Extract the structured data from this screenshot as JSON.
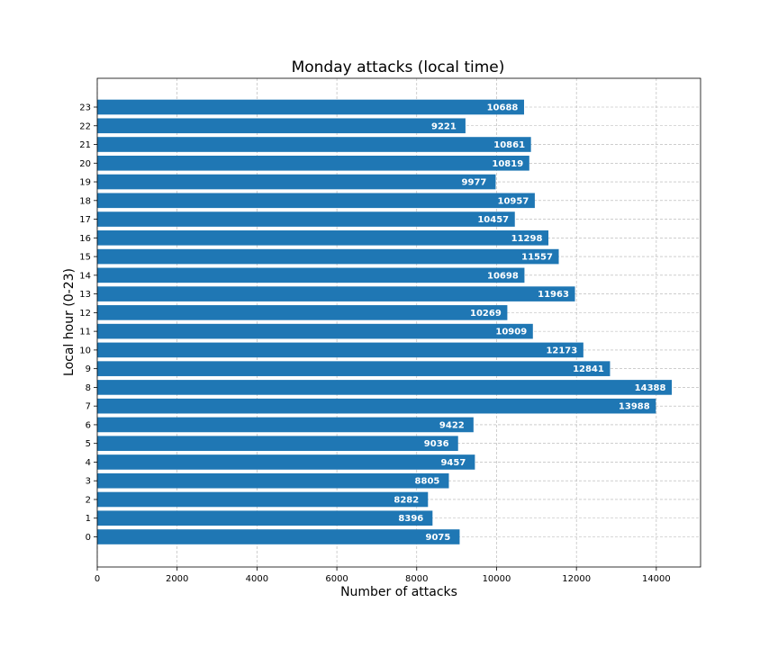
{
  "chart_data": {
    "type": "bar",
    "orientation": "horizontal",
    "title": "Monday attacks (local time)",
    "xlabel": "Number of attacks",
    "ylabel": "Local hour (0-23)",
    "categories": [
      "0",
      "1",
      "2",
      "3",
      "4",
      "5",
      "6",
      "7",
      "8",
      "9",
      "10",
      "11",
      "12",
      "13",
      "14",
      "15",
      "16",
      "17",
      "18",
      "19",
      "20",
      "21",
      "22",
      "23"
    ],
    "values": [
      9075,
      8396,
      8282,
      8805,
      9457,
      9036,
      9422,
      13988,
      14388,
      12841,
      12173,
      10909,
      10269,
      11963,
      10698,
      11557,
      11298,
      10457,
      10957,
      9977,
      10819,
      10861,
      9221,
      10688
    ],
    "xlim": [
      0,
      15108
    ],
    "xticks": [
      "0",
      "2000",
      "4000",
      "6000",
      "8000",
      "10000",
      "12000",
      "14000"
    ],
    "grid": true,
    "bar_color": "#1f77b4",
    "label_color": "#ffffff"
  }
}
